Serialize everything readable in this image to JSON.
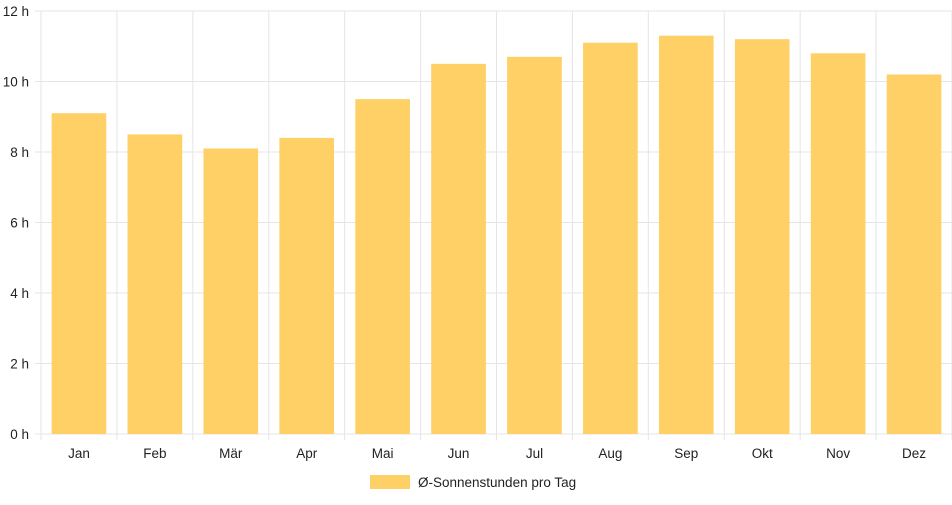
{
  "chart_data": {
    "type": "bar",
    "categories": [
      "Jan",
      "Feb",
      "Mär",
      "Apr",
      "Mai",
      "Jun",
      "Jul",
      "Aug",
      "Sep",
      "Okt",
      "Nov",
      "Dez"
    ],
    "series": [
      {
        "name": "Ø-Sonnenstunden pro Tag",
        "values": [
          9.1,
          8.5,
          8.1,
          8.4,
          9.5,
          10.5,
          10.7,
          11.1,
          11.3,
          11.2,
          10.8,
          10.2
        ],
        "color": "#fed065"
      }
    ],
    "ylim": [
      0,
      12
    ],
    "yticks": [
      0,
      2,
      4,
      6,
      8,
      10,
      12
    ],
    "y_unit": "h",
    "grid": true,
    "legend": "bottom-center",
    "gridline_color": "#e5e5e5"
  }
}
